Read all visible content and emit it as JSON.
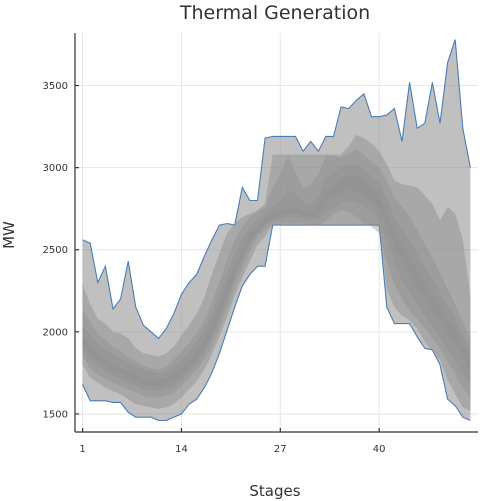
{
  "chart_data": {
    "type": "area",
    "title": "Thermal Generation",
    "xlabel": "Stages",
    "ylabel": "MW",
    "xlim": [
      0,
      53
    ],
    "ylim": [
      1390,
      3820
    ],
    "x_ticks": [
      1,
      14,
      27,
      40
    ],
    "y_ticks": [
      1500,
      2000,
      2500,
      3000,
      3500
    ],
    "grid": true,
    "legend": "none",
    "colors": {
      "band": "#8c8c8c",
      "envelope_line": "#4a7db5",
      "axis": "#333333",
      "grid": "#e6e6e6"
    },
    "band_opacities": [
      0.55,
      0.45,
      0.4,
      0.35,
      0.35
    ],
    "series": [
      {
        "values_upper": [
          2560,
          2540,
          2300,
          2400,
          2140,
          2200,
          2430,
          2150,
          2040,
          2000,
          1960,
          2020,
          2110,
          2230,
          2300,
          2350,
          2460,
          2560,
          2650,
          2660,
          2650,
          2880,
          2800,
          2800,
          3180,
          3190,
          3190,
          3190,
          3190,
          3100,
          3160,
          3100,
          3190,
          3190,
          3370,
          3360,
          3410,
          3450,
          3310,
          3310,
          3320,
          3360,
          3160,
          3520,
          3240,
          3270,
          3520,
          3270,
          3640,
          3780,
          3240,
          3000
        ],
        "values_lower": [
          1680,
          1580,
          1580,
          1580,
          1570,
          1570,
          1510,
          1480,
          1480,
          1480,
          1460,
          1460,
          1480,
          1500,
          1560,
          1590,
          1660,
          1750,
          1870,
          2010,
          2150,
          2280,
          2350,
          2400,
          2400,
          2650,
          2650,
          2650,
          2650,
          2650,
          2650,
          2650,
          2650,
          2650,
          2650,
          2650,
          2650,
          2650,
          2650,
          2650,
          2150,
          2050,
          2050,
          2050,
          1970,
          1900,
          1890,
          1800,
          1590,
          1550,
          1480,
          1460
        ]
      },
      {
        "values_upper": [
          2290,
          2170,
          2080,
          2050,
          2000,
          1990,
          1960,
          1900,
          1870,
          1860,
          1850,
          1870,
          1910,
          1980,
          2040,
          2110,
          2210,
          2350,
          2480,
          2600,
          2660,
          2700,
          2720,
          2740,
          2780,
          3080,
          3080,
          3080,
          3080,
          3080,
          3080,
          3080,
          3080,
          3080,
          3080,
          3130,
          3200,
          3180,
          3150,
          3100,
          3020,
          2920,
          2900,
          2890,
          2880,
          2830,
          2780,
          2680,
          2760,
          2720,
          2560,
          2220
        ],
        "values_lower": [
          1800,
          1720,
          1690,
          1660,
          1640,
          1620,
          1590,
          1560,
          1550,
          1540,
          1530,
          1540,
          1560,
          1600,
          1650,
          1700,
          1770,
          1860,
          1970,
          2090,
          2220,
          2330,
          2430,
          2530,
          2580,
          2650,
          2650,
          2650,
          2650,
          2650,
          2650,
          2650,
          2650,
          2650,
          2650,
          2650,
          2650,
          2650,
          2650,
          2640,
          2260,
          2150,
          2100,
          2070,
          2020,
          1940,
          1880,
          1830,
          1710,
          1620,
          1540,
          1520
        ]
      },
      {
        "values_upper": [
          2140,
          2060,
          1990,
          1950,
          1910,
          1880,
          1850,
          1820,
          1790,
          1780,
          1770,
          1790,
          1830,
          1880,
          1930,
          1990,
          2070,
          2180,
          2300,
          2440,
          2560,
          2640,
          2700,
          2730,
          2760,
          2880,
          2960,
          3070,
          2970,
          2880,
          2890,
          2960,
          3070,
          3070,
          3060,
          3090,
          3110,
          3080,
          3040,
          3000,
          2920,
          2810,
          2760,
          2700,
          2620,
          2530,
          2450,
          2360,
          2260,
          2170,
          2060,
          1960
        ],
        "values_lower": [
          1850,
          1780,
          1740,
          1710,
          1690,
          1670,
          1650,
          1630,
          1610,
          1600,
          1600,
          1610,
          1630,
          1670,
          1720,
          1770,
          1830,
          1910,
          2020,
          2140,
          2270,
          2380,
          2490,
          2580,
          2620,
          2660,
          2660,
          2660,
          2660,
          2660,
          2650,
          2650,
          2680,
          2720,
          2740,
          2730,
          2700,
          2660,
          2640,
          2600,
          2420,
          2290,
          2200,
          2130,
          2080,
          2020,
          1960,
          1900,
          1820,
          1740,
          1660,
          1600
        ]
      },
      {
        "values_upper": [
          2040,
          1980,
          1920,
          1890,
          1860,
          1840,
          1810,
          1790,
          1770,
          1760,
          1750,
          1760,
          1790,
          1830,
          1880,
          1940,
          2010,
          2110,
          2230,
          2360,
          2470,
          2570,
          2640,
          2680,
          2720,
          2760,
          2800,
          2860,
          2840,
          2790,
          2770,
          2830,
          2940,
          2970,
          3000,
          3020,
          3020,
          2990,
          2950,
          2910,
          2810,
          2700,
          2630,
          2560,
          2480,
          2390,
          2320,
          2240,
          2160,
          2080,
          1990,
          1880
        ],
        "values_lower": [
          1890,
          1830,
          1790,
          1760,
          1730,
          1710,
          1690,
          1670,
          1650,
          1640,
          1640,
          1650,
          1670,
          1710,
          1750,
          1800,
          1870,
          1960,
          2070,
          2190,
          2320,
          2430,
          2530,
          2600,
          2650,
          2680,
          2690,
          2700,
          2700,
          2690,
          2680,
          2690,
          2730,
          2760,
          2790,
          2800,
          2790,
          2760,
          2730,
          2680,
          2550,
          2420,
          2320,
          2240,
          2170,
          2100,
          2030,
          1960,
          1890,
          1820,
          1740,
          1680
        ]
      },
      {
        "values_upper": [
          1970,
          1910,
          1860,
          1830,
          1800,
          1780,
          1760,
          1740,
          1720,
          1710,
          1710,
          1720,
          1740,
          1780,
          1820,
          1880,
          1950,
          2040,
          2160,
          2290,
          2400,
          2500,
          2590,
          2640,
          2690,
          2720,
          2740,
          2760,
          2760,
          2740,
          2720,
          2760,
          2860,
          2900,
          2930,
          2950,
          2950,
          2920,
          2880,
          2830,
          2720,
          2610,
          2530,
          2450,
          2370,
          2290,
          2220,
          2150,
          2080,
          2010,
          1930,
          1830
        ],
        "values_lower": [
          1920,
          1860,
          1820,
          1790,
          1760,
          1740,
          1720,
          1700,
          1680,
          1670,
          1670,
          1680,
          1700,
          1740,
          1780,
          1830,
          1900,
          1990,
          2100,
          2230,
          2350,
          2460,
          2550,
          2610,
          2660,
          2690,
          2710,
          2720,
          2720,
          2710,
          2700,
          2720,
          2790,
          2820,
          2850,
          2870,
          2860,
          2830,
          2790,
          2750,
          2640,
          2520,
          2430,
          2350,
          2270,
          2200,
          2130,
          2060,
          1990,
          1920,
          1850,
          1760
        ]
      }
    ]
  }
}
